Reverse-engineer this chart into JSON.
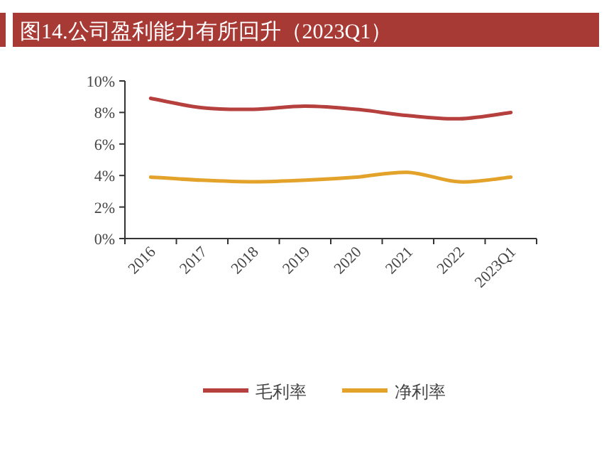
{
  "chart_data": {
    "type": "line",
    "title": "图14.公司盈利能力有所回升（2023Q1）",
    "categories": [
      "2016",
      "2017",
      "2018",
      "2019",
      "2020",
      "2021",
      "2022",
      "2023Q1"
    ],
    "series": [
      {
        "name": "毛利率",
        "color": "#b5403e",
        "values": [
          8.9,
          8.3,
          8.2,
          8.4,
          8.2,
          7.8,
          7.6,
          8.0
        ]
      },
      {
        "name": "净利率",
        "color": "#e3a22a",
        "values": [
          3.9,
          3.7,
          3.6,
          3.7,
          3.9,
          4.2,
          3.6,
          3.9
        ]
      }
    ],
    "ylim": [
      0,
      10
    ],
    "yticks": [
      {
        "value": 0,
        "label": "0%"
      },
      {
        "value": 2,
        "label": "2%"
      },
      {
        "value": 4,
        "label": "4%"
      },
      {
        "value": 6,
        "label": "6%"
      },
      {
        "value": 8,
        "label": "8%"
      },
      {
        "value": 10,
        "label": "10%"
      }
    ],
    "grid": false,
    "legend": "bottom",
    "marker": "none",
    "line_style": "solid"
  }
}
